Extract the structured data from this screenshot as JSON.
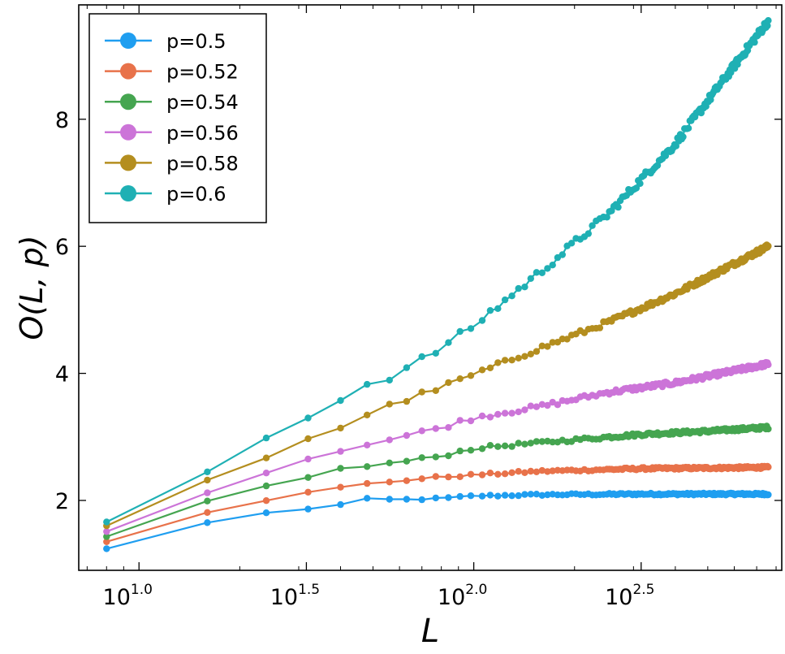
{
  "chart_data": {
    "type": "line",
    "title": "",
    "xlabel": "L",
    "ylabel": "O(L, p)",
    "x_scale": "log10",
    "xlim_log10": [
      0.82,
      2.92
    ],
    "ylim": [
      0.9,
      9.8
    ],
    "x_ticks": [
      {
        "base": "10",
        "exp": "1.0",
        "log10": 1.0
      },
      {
        "base": "10",
        "exp": "1.5",
        "log10": 1.5
      },
      {
        "base": "10",
        "exp": "2.0",
        "log10": 2.0
      },
      {
        "base": "10",
        "exp": "2.5",
        "log10": 2.5
      }
    ],
    "y_ticks": [
      2,
      4,
      6,
      8
    ],
    "legend_position": "top-left",
    "grid": false,
    "series": [
      {
        "name": "p=0.5",
        "color": "#1f9ef0",
        "anchors": [
          [
            0.903,
            1.24
          ],
          [
            1.204,
            1.65
          ],
          [
            1.38,
            1.8
          ],
          [
            1.505,
            1.87
          ],
          [
            1.602,
            1.93
          ],
          [
            1.681,
            2.02
          ],
          [
            1.778,
            2.01
          ],
          [
            1.903,
            2.03
          ],
          [
            2.0,
            2.07
          ],
          [
            2.2,
            2.09
          ],
          [
            2.5,
            2.1
          ],
          [
            2.88,
            2.1
          ]
        ],
        "noise": 0.015
      },
      {
        "name": "p=0.52",
        "color": "#e8724a",
        "anchors": [
          [
            0.903,
            1.35
          ],
          [
            1.204,
            1.81
          ],
          [
            1.38,
            2.01
          ],
          [
            1.505,
            2.12
          ],
          [
            1.602,
            2.2
          ],
          [
            1.681,
            2.26
          ],
          [
            1.778,
            2.31
          ],
          [
            1.903,
            2.37
          ],
          [
            2.0,
            2.4
          ],
          [
            2.2,
            2.46
          ],
          [
            2.5,
            2.5
          ],
          [
            2.88,
            2.52
          ]
        ],
        "noise": 0.018
      },
      {
        "name": "p=0.54",
        "color": "#45a550",
        "anchors": [
          [
            0.903,
            1.43
          ],
          [
            1.204,
            1.99
          ],
          [
            1.38,
            2.22
          ],
          [
            1.505,
            2.38
          ],
          [
            1.602,
            2.49
          ],
          [
            1.681,
            2.54
          ],
          [
            1.778,
            2.6
          ],
          [
            1.903,
            2.7
          ],
          [
            2.0,
            2.82
          ],
          [
            2.2,
            2.91
          ],
          [
            2.5,
            3.04
          ],
          [
            2.7,
            3.09
          ],
          [
            2.88,
            3.15
          ]
        ],
        "noise": 0.025
      },
      {
        "name": "p=0.56",
        "color": "#cc74d8",
        "anchors": [
          [
            0.903,
            1.51
          ],
          [
            1.204,
            2.12
          ],
          [
            1.38,
            2.44
          ],
          [
            1.505,
            2.66
          ],
          [
            1.602,
            2.8
          ],
          [
            1.681,
            2.88
          ],
          [
            1.778,
            2.99
          ],
          [
            1.903,
            3.15
          ],
          [
            2.0,
            3.3
          ],
          [
            2.2,
            3.48
          ],
          [
            2.4,
            3.7
          ],
          [
            2.6,
            3.85
          ],
          [
            2.88,
            4.15
          ]
        ],
        "noise": 0.035
      },
      {
        "name": "p=0.58",
        "color": "#b48e1f",
        "anchors": [
          [
            0.903,
            1.6
          ],
          [
            1.204,
            2.32
          ],
          [
            1.38,
            2.68
          ],
          [
            1.505,
            2.98
          ],
          [
            1.602,
            3.15
          ],
          [
            1.681,
            3.35
          ],
          [
            1.778,
            3.55
          ],
          [
            1.903,
            3.78
          ],
          [
            2.0,
            3.98
          ],
          [
            2.2,
            4.4
          ],
          [
            2.4,
            4.8
          ],
          [
            2.6,
            5.25
          ],
          [
            2.88,
            6.0
          ]
        ],
        "noise": 0.04
      },
      {
        "name": "p=0.6",
        "color": "#1fb0b4",
        "anchors": [
          [
            0.903,
            1.66
          ],
          [
            1.204,
            2.45
          ],
          [
            1.38,
            3.01
          ],
          [
            1.505,
            3.34
          ],
          [
            1.602,
            3.58
          ],
          [
            1.681,
            3.83
          ],
          [
            1.778,
            4.0
          ],
          [
            1.903,
            4.4
          ],
          [
            2.0,
            4.75
          ],
          [
            2.2,
            5.6
          ],
          [
            2.4,
            6.5
          ],
          [
            2.6,
            7.6
          ],
          [
            2.88,
            9.55
          ]
        ],
        "noise": 0.06
      }
    ]
  }
}
